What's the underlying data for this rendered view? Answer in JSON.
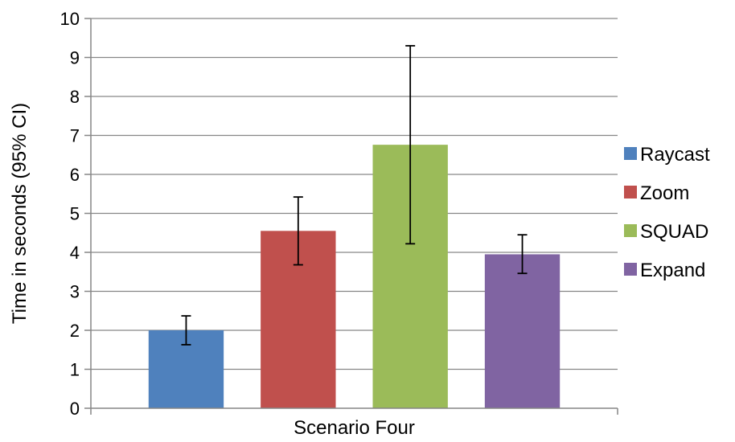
{
  "chart_data": {
    "type": "bar",
    "title": "",
    "xlabel": "",
    "ylabel": "Time in seconds (95% CI)",
    "ylim": [
      0,
      10
    ],
    "yticks": [
      0,
      1,
      2,
      3,
      4,
      5,
      6,
      7,
      8,
      9,
      10
    ],
    "categories": [
      "Scenario Four"
    ],
    "grid": true,
    "legend_position": "right",
    "series": [
      {
        "name": "Raycast",
        "values": [
          2.0
        ],
        "error_low": [
          1.63
        ],
        "error_high": [
          2.37
        ],
        "color": "#4f81bd"
      },
      {
        "name": "Zoom",
        "values": [
          4.55
        ],
        "error_low": [
          3.68
        ],
        "error_high": [
          5.42
        ],
        "color": "#c0504d"
      },
      {
        "name": "SQUAD",
        "values": [
          6.76
        ],
        "error_low": [
          4.22
        ],
        "error_high": [
          9.3
        ],
        "color": "#9bbb59"
      },
      {
        "name": "Expand",
        "values": [
          3.95
        ],
        "error_low": [
          3.46
        ],
        "error_high": [
          4.45
        ],
        "color": "#8064a2"
      }
    ]
  }
}
